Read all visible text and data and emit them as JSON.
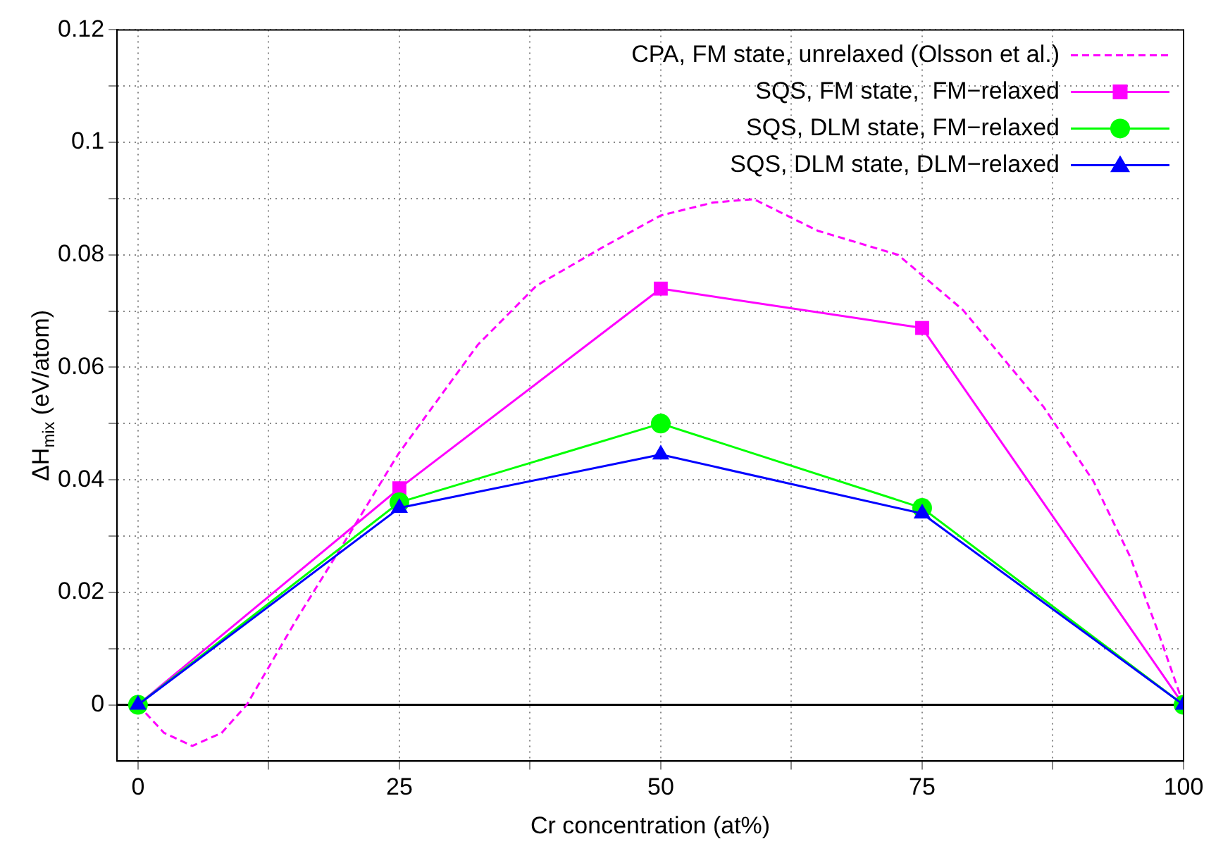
{
  "chart_data": {
    "type": "line",
    "xlabel": "Cr concentration (at%)",
    "ylabel": "ΔH$_{mix}$ (eV/atom)",
    "xlim": [
      -2,
      100
    ],
    "ylim": [
      -0.01,
      0.12
    ],
    "xticks": [
      0,
      {
        "value": 12.5,
        "label": null
      },
      25,
      {
        "value": 37.5,
        "label": null
      },
      50,
      {
        "value": 62.5,
        "label": null
      },
      75,
      {
        "value": 87.5,
        "label": null
      },
      100
    ],
    "yticks": [
      0,
      {
        "value": 0.01,
        "label": null
      },
      0.02,
      {
        "value": 0.03,
        "label": null
      },
      0.04,
      {
        "value": 0.05,
        "label": null
      },
      0.06,
      {
        "value": 0.07,
        "label": null
      },
      0.08,
      {
        "value": 0.09,
        "label": null
      },
      0.1,
      {
        "value": 0.11,
        "label": null
      },
      0.12
    ],
    "grid": true,
    "legend": "top right",
    "ref_lines": [
      {
        "axis": "y",
        "value": 0,
        "color": "#000000"
      }
    ],
    "series": [
      {
        "name": "CPA, FM state, unrelaxed (Olsson et al.)",
        "color": "#ff00ff",
        "marker": "none",
        "line_style": "dashed",
        "x": [
          0,
          2.5,
          5.2,
          8,
          10.4,
          15.2,
          20.1,
          24.9,
          32.5,
          38.1,
          44.3,
          50,
          55,
          58.9,
          65,
          72.7,
          78.9,
          86.6,
          91.4,
          94.9,
          97.6,
          100
        ],
        "values": [
          0,
          -0.005,
          -0.0073,
          -0.005,
          0,
          0.0153,
          0.03,
          0.0446,
          0.064,
          0.0745,
          0.0812,
          0.087,
          0.0893,
          0.0899,
          0.0843,
          0.08,
          0.0702,
          0.053,
          0.0397,
          0.0263,
          0.0128,
          0
        ]
      },
      {
        "name": "SQS, FM state,  FM−relaxed",
        "color": "#ff00ff",
        "marker": "square",
        "x": [
          0,
          25,
          50,
          75,
          100
        ],
        "values": [
          0,
          0.0385,
          0.074,
          0.067,
          0
        ]
      },
      {
        "name": "SQS, DLM state, FM−relaxed",
        "color": "#00ff00",
        "marker": "circle",
        "x": [
          0,
          25,
          50,
          75,
          100
        ],
        "values": [
          0,
          0.036,
          0.05,
          0.035,
          0
        ]
      },
      {
        "name": "SQS, DLM state, DLM−relaxed",
        "color": "#0000ff",
        "marker": "triangle",
        "x": [
          0,
          25,
          50,
          75,
          100
        ],
        "values": [
          0,
          0.035,
          0.0445,
          0.034,
          0
        ]
      }
    ]
  }
}
